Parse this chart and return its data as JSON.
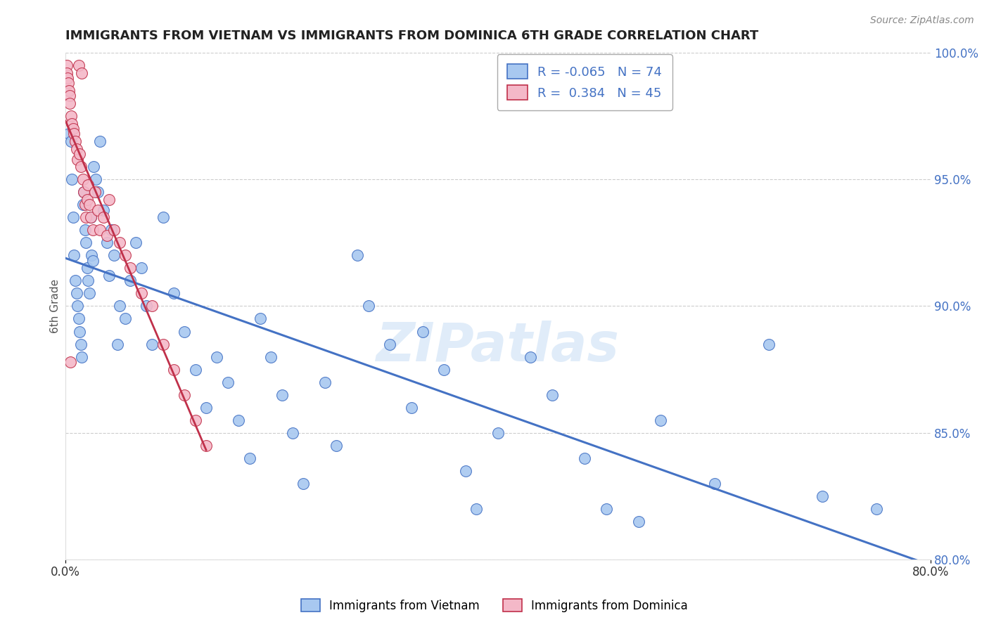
{
  "title": "IMMIGRANTS FROM VIETNAM VS IMMIGRANTS FROM DOMINICA 6TH GRADE CORRELATION CHART",
  "source": "Source: ZipAtlas.com",
  "ylabel": "6th Grade",
  "xlim": [
    0.0,
    80.0
  ],
  "ylim": [
    80.0,
    100.0
  ],
  "y_ticks_right": [
    80.0,
    85.0,
    90.0,
    95.0,
    100.0
  ],
  "y_tick_labels_right": [
    "80.0%",
    "85.0%",
    "90.0%",
    "95.0%",
    "100.0%"
  ],
  "legend_R_vietnam": "-0.065",
  "legend_N_vietnam": "74",
  "legend_R_dominica": "0.384",
  "legend_N_dominica": "45",
  "color_vietnam": "#a8c8f0",
  "color_dominica": "#f4b8c8",
  "color_trendline_vietnam": "#4472c4",
  "color_trendline_dominica": "#c0304a",
  "watermark": "ZIPatlas",
  "background_color": "#ffffff",
  "grid_color": "#cccccc",
  "vietnam_x": [
    0.3,
    0.5,
    0.6,
    0.7,
    0.8,
    0.9,
    1.0,
    1.1,
    1.2,
    1.3,
    1.4,
    1.5,
    1.6,
    1.7,
    1.8,
    1.9,
    2.0,
    2.1,
    2.2,
    2.3,
    2.4,
    2.5,
    2.6,
    2.8,
    3.0,
    3.2,
    3.5,
    3.8,
    4.0,
    4.2,
    4.5,
    4.8,
    5.0,
    5.5,
    6.0,
    6.5,
    7.0,
    7.5,
    8.0,
    9.0,
    10.0,
    11.0,
    12.0,
    13.0,
    14.0,
    15.0,
    16.0,
    17.0,
    18.0,
    19.0,
    20.0,
    21.0,
    22.0,
    24.0,
    25.0,
    27.0,
    28.0,
    30.0,
    32.0,
    33.0,
    35.0,
    37.0,
    38.0,
    40.0,
    43.0,
    45.0,
    48.0,
    50.0,
    53.0,
    55.0,
    60.0,
    65.0,
    70.0,
    75.0
  ],
  "vietnam_y": [
    96.8,
    96.5,
    95.0,
    93.5,
    92.0,
    91.0,
    90.5,
    90.0,
    89.5,
    89.0,
    88.5,
    88.0,
    94.0,
    94.5,
    93.0,
    92.5,
    91.5,
    91.0,
    90.5,
    93.5,
    92.0,
    91.8,
    95.5,
    95.0,
    94.5,
    96.5,
    93.8,
    92.5,
    91.2,
    93.0,
    92.0,
    88.5,
    90.0,
    89.5,
    91.0,
    92.5,
    91.5,
    90.0,
    88.5,
    93.5,
    90.5,
    89.0,
    87.5,
    86.0,
    88.0,
    87.0,
    85.5,
    84.0,
    89.5,
    88.0,
    86.5,
    85.0,
    83.0,
    87.0,
    84.5,
    92.0,
    90.0,
    88.5,
    86.0,
    89.0,
    87.5,
    83.5,
    82.0,
    85.0,
    88.0,
    86.5,
    84.0,
    82.0,
    81.5,
    85.5,
    83.0,
    88.5,
    82.5,
    82.0
  ],
  "dominica_x": [
    0.1,
    0.15,
    0.2,
    0.25,
    0.3,
    0.35,
    0.4,
    0.5,
    0.6,
    0.7,
    0.8,
    0.9,
    1.0,
    1.1,
    1.2,
    1.3,
    1.4,
    1.5,
    1.6,
    1.7,
    1.8,
    1.9,
    2.0,
    2.1,
    2.2,
    2.3,
    2.5,
    2.7,
    3.0,
    3.2,
    3.5,
    3.8,
    4.0,
    4.5,
    5.0,
    5.5,
    6.0,
    7.0,
    8.0,
    9.0,
    10.0,
    11.0,
    12.0,
    13.0,
    0.45
  ],
  "dominica_y": [
    99.5,
    99.2,
    99.0,
    98.8,
    98.5,
    98.3,
    98.0,
    97.5,
    97.2,
    97.0,
    96.8,
    96.5,
    96.2,
    95.8,
    99.5,
    96.0,
    95.5,
    99.2,
    95.0,
    94.5,
    94.0,
    93.5,
    94.2,
    94.8,
    94.0,
    93.5,
    93.0,
    94.5,
    93.8,
    93.0,
    93.5,
    92.8,
    94.2,
    93.0,
    92.5,
    92.0,
    91.5,
    90.5,
    90.0,
    88.5,
    87.5,
    86.5,
    85.5,
    84.5,
    87.8
  ]
}
